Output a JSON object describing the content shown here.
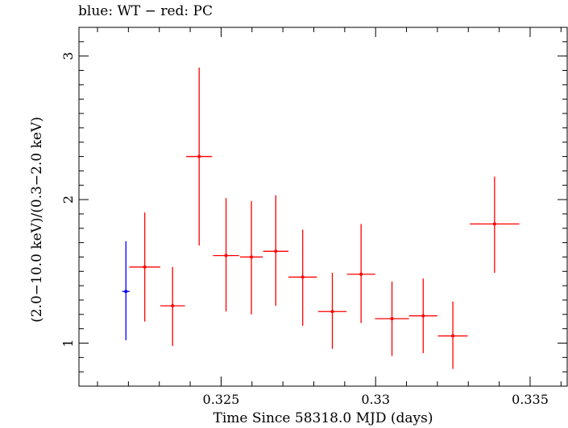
{
  "chart_data": {
    "type": "scatter",
    "title": "blue: WT − red: PC",
    "xlabel": "Time Since 58318.0 MJD (days)",
    "ylabel": "(2.0−10.0 keV)/(0.3−2.0 keV)",
    "xlim": [
      0.3204,
      0.3362
    ],
    "ylim": [
      0.7,
      3.2
    ],
    "xticks": [
      0.325,
      0.33,
      0.335
    ],
    "xtick_labels": [
      "0.325",
      "0.33",
      "0.335"
    ],
    "yticks": [
      1,
      2,
      3
    ],
    "ytick_labels": [
      "1",
      "2",
      "3"
    ],
    "grid": false,
    "series": [
      {
        "name": "WT",
        "color": "#0000ff",
        "points": [
          {
            "x": 0.32192,
            "y": 1.36,
            "xerr": 0.00012,
            "ylo": 1.02,
            "yhi": 1.71
          }
        ]
      },
      {
        "name": "PC",
        "color": "#ff0000",
        "points": [
          {
            "x": 0.32253,
            "y": 1.53,
            "xerr": 0.0005,
            "ylo": 1.15,
            "yhi": 1.91
          },
          {
            "x": 0.32343,
            "y": 1.26,
            "xerr": 0.0004,
            "ylo": 0.98,
            "yhi": 1.53
          },
          {
            "x": 0.32429,
            "y": 2.3,
            "xerr": 0.00042,
            "ylo": 1.68,
            "yhi": 2.92
          },
          {
            "x": 0.32516,
            "y": 1.61,
            "xerr": 0.00042,
            "ylo": 1.22,
            "yhi": 2.01
          },
          {
            "x": 0.32598,
            "y": 1.6,
            "xerr": 0.00037,
            "ylo": 1.2,
            "yhi": 1.99
          },
          {
            "x": 0.32677,
            "y": 1.64,
            "xerr": 0.00041,
            "ylo": 1.26,
            "yhi": 2.03
          },
          {
            "x": 0.32764,
            "y": 1.46,
            "xerr": 0.00046,
            "ylo": 1.12,
            "yhi": 1.79
          },
          {
            "x": 0.3286,
            "y": 1.22,
            "xerr": 0.00046,
            "ylo": 0.96,
            "yhi": 1.49
          },
          {
            "x": 0.32953,
            "y": 1.48,
            "xerr": 0.00046,
            "ylo": 1.14,
            "yhi": 1.83
          },
          {
            "x": 0.33053,
            "y": 1.17,
            "xerr": 0.00055,
            "ylo": 0.91,
            "yhi": 1.43
          },
          {
            "x": 0.33154,
            "y": 1.19,
            "xerr": 0.00046,
            "ylo": 0.93,
            "yhi": 1.45
          },
          {
            "x": 0.3325,
            "y": 1.05,
            "xerr": 0.00048,
            "ylo": 0.82,
            "yhi": 1.29
          },
          {
            "x": 0.33385,
            "y": 1.83,
            "xerr": 0.0008,
            "ylo": 1.49,
            "yhi": 2.16
          }
        ]
      }
    ]
  }
}
